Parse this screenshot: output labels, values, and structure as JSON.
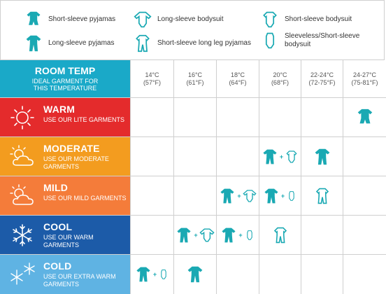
{
  "legend": [
    {
      "icon": "short-sleeve-pyjamas-icon",
      "label": "Short-sleeve pyjamas"
    },
    {
      "icon": "long-sleeve-bodysuit-icon",
      "label": "Long-sleeve bodysuit"
    },
    {
      "icon": "short-sleeve-bodysuit-icon",
      "label": "Short-sleeve bodysuit"
    },
    {
      "icon": "long-sleeve-pyjamas-icon",
      "label": "Long-sleeve pyjamas"
    },
    {
      "icon": "short-sleeve-long-leg-pyjamas-icon",
      "label": "Short-sleeve long leg pyjamas"
    },
    {
      "icon": "sleeveless-bodysuit-icon",
      "label": "Sleeveless/Short-sleeve bodysuit"
    }
  ],
  "header": {
    "title": "ROOM TEMP",
    "subtitle": "IDEAL GARMENT FOR THIS TEMPERATURE",
    "temps": [
      {
        "c": "14°C",
        "f": "(57°F)"
      },
      {
        "c": "16°C",
        "f": "(61°F)"
      },
      {
        "c": "18°C",
        "f": "(64°F)"
      },
      {
        "c": "20°C",
        "f": "(68°F)"
      },
      {
        "c": "22-24°C",
        "f": "(72-75°F)"
      },
      {
        "c": "24-27°C",
        "f": "(75-81°F)"
      }
    ]
  },
  "rows": [
    {
      "name": "WARM",
      "desc": "USE OUR LITE GARMENTS",
      "color": "#e42b2c",
      "icon": "sun-icon"
    },
    {
      "name": "MODERATE",
      "desc": "USE OUR MODERATE GARMENTS",
      "color": "#f39c1f",
      "icon": "sun-cloud-icon"
    },
    {
      "name": "MILD",
      "desc": "USE OUR MILD GARMENTS",
      "color": "#f47c3a",
      "icon": "sun-cloud-icon"
    },
    {
      "name": "COOL",
      "desc": "USE OUR WARM GARMENTS",
      "color": "#1c5ba8",
      "icon": "snowflake-icon"
    },
    {
      "name": "COLD",
      "desc": "USE OUR EXTRA WARM GARMENTS",
      "color": "#5fb3e3",
      "icon": "snowflakes-icon"
    }
  ],
  "colors": {
    "accent": "#1aa9b3",
    "header_bg": "#1aa9c8",
    "plus": "+"
  }
}
